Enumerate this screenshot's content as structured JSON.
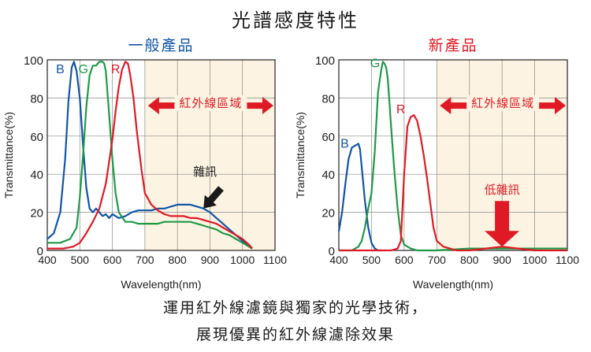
{
  "header": {
    "title": "光譜感度特性"
  },
  "caption": {
    "line1": "運用紅外線濾鏡與獨家的光學技術，",
    "line2": "展現優異的紅外線濾除效果"
  },
  "colors": {
    "B": "#1155a8",
    "G": "#1e9a46",
    "R": "#e01a24",
    "accent": "#e01a24",
    "ir_band": "#fdf3e2"
  },
  "chart_data": [
    {
      "type": "line",
      "title": "一般產品",
      "title_color": "#1155a8",
      "xlabel": "Wavelength(nm)",
      "ylabel": "Transmittance(%)",
      "xlim": [
        400,
        1100
      ],
      "ylim": [
        0,
        100
      ],
      "x_ticks": [
        400,
        500,
        600,
        700,
        800,
        900,
        1000,
        1100
      ],
      "y_ticks": [
        0,
        20,
        40,
        60,
        80,
        100
      ],
      "ir_band": {
        "from": 700,
        "to": 1100
      },
      "ir_label": "紅外線區域",
      "annotation": {
        "text": "雜訊",
        "color": "#1a1a1a",
        "arrow_to": [
          880,
          22
        ]
      },
      "series": [
        {
          "name": "B",
          "color": "#1155a8",
          "label_at": [
            440,
            93
          ],
          "x": [
            400,
            420,
            440,
            455,
            465,
            475,
            482,
            490,
            500,
            510,
            520,
            530,
            540,
            550,
            560,
            570,
            580,
            590,
            600,
            620,
            640,
            660,
            680,
            700,
            720,
            740,
            760,
            780,
            800,
            820,
            840,
            860,
            880,
            900,
            920,
            940,
            960,
            980,
            1000,
            1020,
            1030
          ],
          "y": [
            6,
            9,
            20,
            48,
            78,
            96,
            99,
            94,
            80,
            55,
            33,
            22,
            20,
            22,
            20,
            18,
            19,
            17,
            19,
            17,
            18,
            20,
            21,
            21,
            21,
            22,
            22,
            23,
            24,
            24,
            24,
            23,
            22,
            20,
            17,
            14,
            11,
            8,
            5,
            2,
            1
          ]
        },
        {
          "name": "G",
          "color": "#1e9a46",
          "label_at": [
            511,
            93
          ],
          "x": [
            400,
            440,
            470,
            490,
            500,
            510,
            520,
            530,
            540,
            550,
            560,
            570,
            575,
            580,
            590,
            600,
            610,
            620,
            640,
            660,
            680,
            700,
            720,
            740,
            760,
            780,
            800,
            820,
            840,
            860,
            880,
            900,
            920,
            940,
            960,
            980,
            1000,
            1020,
            1030
          ],
          "y": [
            4,
            4,
            6,
            12,
            28,
            50,
            75,
            92,
            97,
            97,
            99,
            99,
            98,
            94,
            72,
            48,
            30,
            20,
            15,
            15,
            14,
            14,
            14,
            14,
            15,
            15,
            15,
            15,
            15,
            14,
            13,
            12,
            11,
            9,
            8,
            6,
            4,
            2,
            1
          ]
        },
        {
          "name": "R",
          "color": "#e01a24",
          "label_at": [
            610,
            93
          ],
          "x": [
            400,
            450,
            480,
            500,
            520,
            540,
            560,
            580,
            600,
            610,
            620,
            630,
            640,
            648,
            655,
            665,
            675,
            690,
            700,
            720,
            740,
            760,
            780,
            800,
            820,
            840,
            860,
            880,
            900,
            920,
            940,
            960,
            980,
            1000,
            1020,
            1030
          ],
          "y": [
            1,
            1,
            2,
            4,
            9,
            15,
            22,
            35,
            58,
            73,
            86,
            95,
            99,
            98,
            92,
            80,
            63,
            42,
            30,
            24,
            21,
            19,
            18,
            18,
            18,
            17,
            17,
            16,
            15,
            14,
            12,
            10,
            8,
            6,
            3,
            1
          ]
        }
      ]
    },
    {
      "type": "line",
      "title": "新產品",
      "title_color": "#e01a24",
      "xlabel": "Wavelength(nm)",
      "ylabel": "Transmittance(%)",
      "xlim": [
        400,
        1100
      ],
      "ylim": [
        0,
        100
      ],
      "x_ticks": [
        400,
        500,
        600,
        700,
        800,
        900,
        1000,
        1100
      ],
      "y_ticks": [
        0,
        20,
        40,
        60,
        80,
        100
      ],
      "ir_band": {
        "from": 700,
        "to": 1100
      },
      "ir_label": "紅外線區域",
      "annotation": {
        "text": "低雜訊",
        "color": "#e01a24",
        "arrow_to": [
          900,
          2
        ]
      },
      "series": [
        {
          "name": "B",
          "color": "#1155a8",
          "label_at": [
            418,
            54
          ],
          "x": [
            400,
            410,
            420,
            430,
            440,
            450,
            460,
            465,
            470,
            480,
            490,
            500,
            510,
            520,
            530
          ],
          "y": [
            10,
            20,
            35,
            48,
            54,
            55,
            56,
            53,
            44,
            26,
            12,
            4,
            1,
            0,
            0
          ]
        },
        {
          "name": "G",
          "color": "#1e9a46",
          "label_at": [
            511,
            96
          ],
          "x": [
            400,
            440,
            460,
            470,
            480,
            490,
            500,
            510,
            520,
            530,
            535,
            540,
            545,
            550,
            555,
            560,
            570,
            580,
            590,
            600,
            620,
            640,
            700,
            800,
            900,
            1000,
            1100
          ],
          "y": [
            0,
            0,
            2,
            5,
            12,
            22,
            30,
            52,
            83,
            95,
            99,
            98,
            96,
            90,
            78,
            65,
            42,
            22,
            8,
            3,
            1,
            0,
            0,
            1,
            1,
            1,
            1
          ]
        },
        {
          "name": "R",
          "color": "#e01a24",
          "label_at": [
            590,
            72
          ],
          "x": [
            400,
            560,
            580,
            590,
            600,
            610,
            620,
            630,
            640,
            650,
            660,
            670,
            680,
            690,
            700,
            720,
            740,
            760,
            800,
            850,
            900,
            950,
            1000,
            1100
          ],
          "y": [
            0,
            0,
            1,
            5,
            40,
            65,
            70,
            71,
            68,
            60,
            50,
            38,
            25,
            12,
            5,
            2,
            1,
            0,
            0,
            1,
            2,
            1,
            0,
            0
          ]
        }
      ]
    }
  ]
}
